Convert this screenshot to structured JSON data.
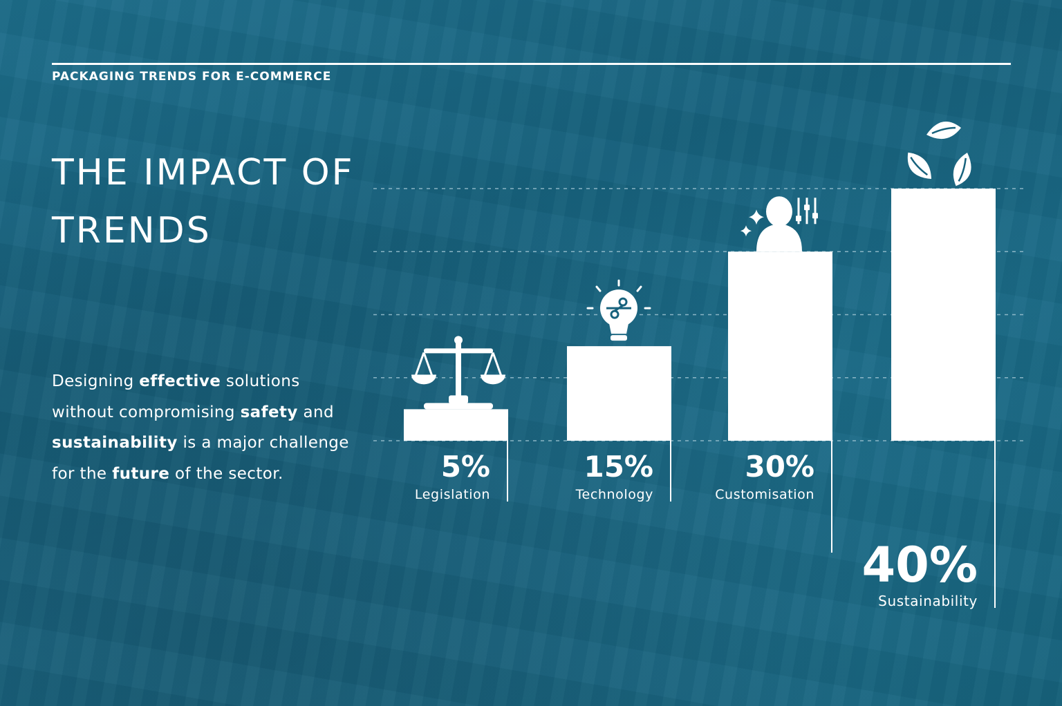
{
  "header": {
    "eyebrow": "PACKAGING TRENDS FOR E-COMMERCE",
    "title_line1": "THE IMPACT OF",
    "title_line2": "TRENDS"
  },
  "body": {
    "segments": [
      {
        "text": "Designing ",
        "bold": false
      },
      {
        "text": "effective",
        "bold": true
      },
      {
        "text": " solutions without compromising ",
        "bold": false
      },
      {
        "text": "safety",
        "bold": true
      },
      {
        "text": " and ",
        "bold": false
      },
      {
        "text": "sustainability",
        "bold": true
      },
      {
        "text": " is a major challenge for the ",
        "bold": false
      },
      {
        "text": "future",
        "bold": true
      },
      {
        "text": " of the sector.",
        "bold": false
      }
    ]
  },
  "colors": {
    "background": "#17627d",
    "bar": "#ffffff",
    "gridline": "#9fc4d2"
  },
  "chart_data": {
    "type": "bar",
    "categories": [
      "Legislation",
      "Technology",
      "Customisation",
      "Sustainability"
    ],
    "values": [
      5,
      15,
      30,
      40
    ],
    "value_labels": [
      "5%",
      "15%",
      "30%",
      "40%"
    ],
    "icons": [
      "scales-icon",
      "lightbulb-icon",
      "person-settings-icon",
      "recycle-leaf-icon"
    ],
    "ylim": [
      0,
      40
    ],
    "grid": true,
    "title": "",
    "xlabel": "",
    "ylabel": ""
  }
}
